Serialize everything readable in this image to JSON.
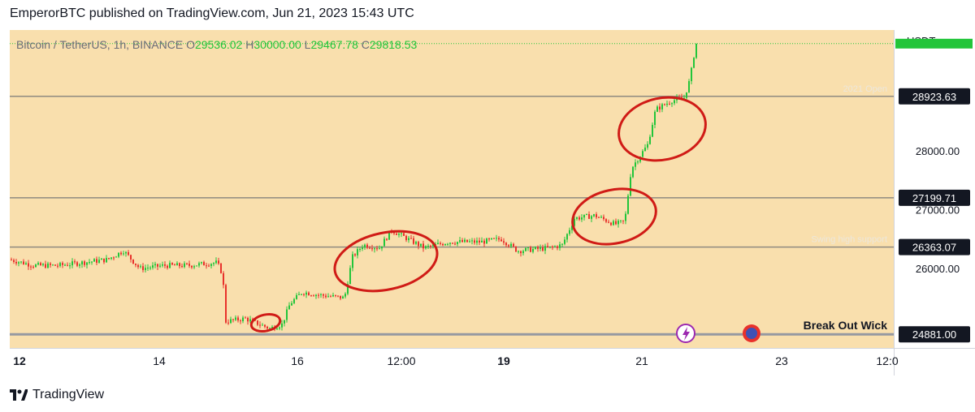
{
  "header": {
    "text": "EmperorBTC published on TradingView.com, Jun 21, 2023 15:43 UTC"
  },
  "footer": {
    "brand": "TradingView",
    "logo_icon": "tradingview-logo-icon"
  },
  "colors": {
    "background": "#f9dfad",
    "up": "#22c53a",
    "down": "#e8312b",
    "level_line": "#8f8a80",
    "annotation": "#d01b16",
    "text": "#131722",
    "faint_text": "#ece7dc"
  },
  "chart_data": {
    "type": "candlestick",
    "symbol_line": {
      "symbol": "Bitcoin / TetherUS, 1h, BINANCE",
      "o_label": "O",
      "o": "29536.02",
      "h_label": "H",
      "h": "30000.00",
      "l_label": "L",
      "l": "29467.78",
      "c_label": "C",
      "c": "29818.53"
    },
    "price_axis": {
      "currency": "USDT",
      "ticks": [
        "28000.00",
        "27000.00",
        "26000.00"
      ],
      "ylim": [
        24650,
        30050
      ]
    },
    "time_axis": {
      "ticks": [
        "12",
        "14",
        "16",
        "12:00",
        "19",
        "21",
        "23",
        "12:0"
      ],
      "bold_ticks": [
        "12",
        "19"
      ]
    },
    "levels": [
      {
        "price": 28923.63,
        "label": "28923.63",
        "note": "2021 Open"
      },
      {
        "price": 27199.71,
        "label": "27199.71",
        "note": ""
      },
      {
        "price": 26363.07,
        "label": "26363.07",
        "note": "Swing high support"
      },
      {
        "price": 24881.0,
        "label": "24881.00",
        "note": "Break Out Wick"
      }
    ],
    "last_price": 29818.53,
    "anchors": [
      {
        "x": 0,
        "y": 26150
      },
      {
        "x": 30,
        "y": 26050
      },
      {
        "x": 60,
        "y": 26050
      },
      {
        "x": 90,
        "y": 26100
      },
      {
        "x": 120,
        "y": 26150
      },
      {
        "x": 140,
        "y": 26300
      },
      {
        "x": 160,
        "y": 26000
      },
      {
        "x": 190,
        "y": 26050
      },
      {
        "x": 220,
        "y": 26050
      },
      {
        "x": 255,
        "y": 26100
      },
      {
        "x": 262,
        "y": 25900
      },
      {
        "x": 266,
        "y": 25100
      },
      {
        "x": 290,
        "y": 25150
      },
      {
        "x": 320,
        "y": 24980
      },
      {
        "x": 335,
        "y": 25050
      },
      {
        "x": 345,
        "y": 25400
      },
      {
        "x": 360,
        "y": 25600
      },
      {
        "x": 380,
        "y": 25550
      },
      {
        "x": 412,
        "y": 25500
      },
      {
        "x": 422,
        "y": 26200
      },
      {
        "x": 435,
        "y": 26400
      },
      {
        "x": 455,
        "y": 26350
      },
      {
        "x": 470,
        "y": 26650
      },
      {
        "x": 490,
        "y": 26500
      },
      {
        "x": 510,
        "y": 26350
      },
      {
        "x": 540,
        "y": 26450
      },
      {
        "x": 580,
        "y": 26450
      },
      {
        "x": 605,
        "y": 26500
      },
      {
        "x": 625,
        "y": 26300
      },
      {
        "x": 665,
        "y": 26350
      },
      {
        "x": 680,
        "y": 26400
      },
      {
        "x": 695,
        "y": 26850
      },
      {
        "x": 720,
        "y": 26900
      },
      {
        "x": 745,
        "y": 26750
      },
      {
        "x": 757,
        "y": 26800
      },
      {
        "x": 765,
        "y": 27700
      },
      {
        "x": 785,
        "y": 28100
      },
      {
        "x": 795,
        "y": 28700
      },
      {
        "x": 815,
        "y": 28850
      },
      {
        "x": 830,
        "y": 28900
      },
      {
        "x": 837,
        "y": 29200
      },
      {
        "x": 843,
        "y": 29700
      },
      {
        "x": 846,
        "y": 29820
      }
    ]
  }
}
